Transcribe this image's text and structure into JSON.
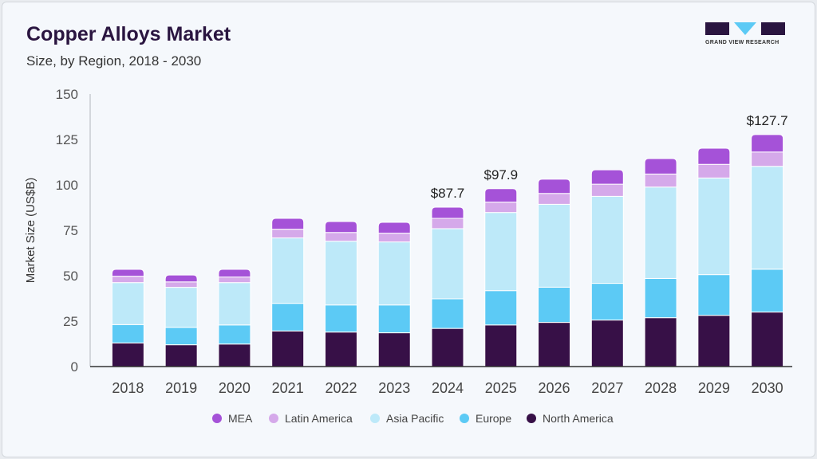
{
  "header": {
    "title": "Copper Alloys Market",
    "subtitle": "Size, by Region, 2018 - 2030",
    "logo_text": "GRAND VIEW RESEARCH"
  },
  "chart_data": {
    "type": "bar",
    "stacked": true,
    "ylabel": "Market Size (US$B)",
    "xlabel": "",
    "ylim": [
      0,
      150
    ],
    "yticks": [
      0,
      25,
      50,
      75,
      100,
      125,
      150
    ],
    "grid": false,
    "legend_position": "bottom",
    "categories": [
      "2018",
      "2019",
      "2020",
      "2021",
      "2022",
      "2023",
      "2024",
      "2025",
      "2026",
      "2027",
      "2028",
      "2029",
      "2030"
    ],
    "series": [
      {
        "name": "North America",
        "color": "#371047",
        "values": [
          13.0,
          12.0,
          12.4,
          19.6,
          19.0,
          18.6,
          21.0,
          22.9,
          24.3,
          25.6,
          26.9,
          28.2,
          30.0
        ]
      },
      {
        "name": "Europe",
        "color": "#5ccaf5",
        "values": [
          10.1,
          9.6,
          10.5,
          15.2,
          14.9,
          15.3,
          16.3,
          18.9,
          19.4,
          20.2,
          21.6,
          22.4,
          23.6
        ]
      },
      {
        "name": "Asia Pacific",
        "color": "#bde9f9",
        "values": [
          23.1,
          22.0,
          23.3,
          36.0,
          35.1,
          34.7,
          38.6,
          43.0,
          45.6,
          47.9,
          50.3,
          53.2,
          56.6
        ]
      },
      {
        "name": "Latin America",
        "color": "#d5a9ea",
        "values": [
          3.5,
          3.0,
          3.1,
          4.8,
          4.8,
          4.8,
          5.7,
          5.7,
          6.0,
          6.7,
          7.2,
          7.5,
          7.9
        ]
      },
      {
        "name": "MEA",
        "color": "#a552d8",
        "values": [
          3.8,
          3.8,
          4.2,
          6.0,
          6.0,
          6.0,
          6.1,
          7.4,
          7.8,
          7.9,
          8.5,
          8.9,
          9.6
        ]
      }
    ],
    "annotations": [
      {
        "category": "2024",
        "label": "$87.7"
      },
      {
        "category": "2025",
        "label": "$97.9"
      },
      {
        "category": "2030",
        "label": "$127.7"
      }
    ],
    "legend_order": [
      "MEA",
      "Latin America",
      "Asia Pacific",
      "Europe",
      "North America"
    ]
  }
}
